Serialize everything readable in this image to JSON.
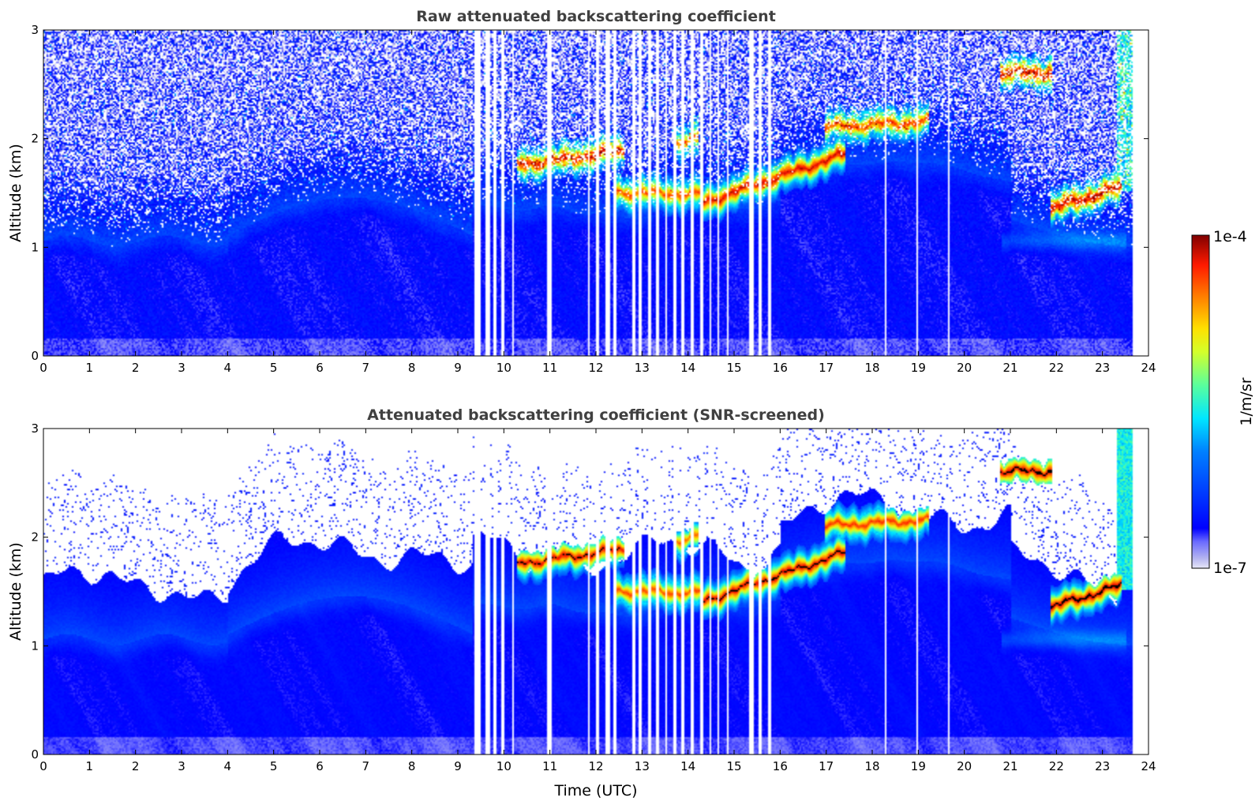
{
  "chart_data": [
    {
      "type": "heatmap",
      "title": "Raw attenuated backscattering coefficient",
      "xlabel": "",
      "ylabel": "Altitude (km)",
      "xlim": [
        0,
        24
      ],
      "ylim": [
        0,
        3
      ],
      "x_ticks": [
        "0",
        "1",
        "2",
        "3",
        "4",
        "5",
        "6",
        "7",
        "8",
        "9",
        "10",
        "11",
        "12",
        "13",
        "14",
        "15",
        "16",
        "17",
        "18",
        "19",
        "20",
        "21",
        "22",
        "23",
        "24"
      ],
      "y_ticks": [
        "0",
        "1",
        "2",
        "3"
      ],
      "screened": false
    },
    {
      "type": "heatmap",
      "title": "Attenuated backscattering coefficient (SNR-screened)",
      "xlabel": "Time (UTC)",
      "ylabel": "Altitude (km)",
      "xlim": [
        0,
        24
      ],
      "ylim": [
        0,
        3
      ],
      "x_ticks": [
        "0",
        "1",
        "2",
        "3",
        "4",
        "5",
        "6",
        "7",
        "8",
        "9",
        "10",
        "11",
        "12",
        "13",
        "14",
        "15",
        "16",
        "17",
        "18",
        "19",
        "20",
        "21",
        "22",
        "23",
        "24"
      ],
      "y_ticks": [
        "0",
        "1",
        "2",
        "3"
      ],
      "screened": true
    }
  ],
  "colorbar": {
    "label": "1/m/sr",
    "max_label": "1e-4",
    "min_label": "1e-7",
    "scale": "log",
    "colormap": "jet"
  },
  "data_end_hour": 23.65,
  "data_gaps_hours": [
    [
      9.33,
      9.47
    ],
    [
      9.58,
      9.67
    ],
    [
      9.75,
      9.83
    ],
    [
      9.92,
      10.0
    ],
    [
      10.17,
      10.2
    ],
    [
      10.92,
      11.02
    ],
    [
      11.8,
      11.85
    ],
    [
      11.98,
      12.05
    ],
    [
      12.2,
      12.3
    ],
    [
      12.37,
      12.42
    ],
    [
      12.78,
      12.85
    ],
    [
      12.92,
      12.98
    ],
    [
      13.12,
      13.18
    ],
    [
      13.3,
      13.35
    ],
    [
      13.48,
      13.53
    ],
    [
      13.67,
      13.72
    ],
    [
      13.85,
      13.9
    ],
    [
      14.05,
      14.1
    ],
    [
      14.25,
      14.3
    ],
    [
      14.45,
      14.5
    ],
    [
      14.62,
      14.67
    ],
    [
      14.82,
      14.87
    ],
    [
      15.32,
      15.4
    ],
    [
      15.52,
      15.58
    ],
    [
      15.72,
      15.78
    ],
    [
      18.27,
      18.3
    ],
    [
      18.95,
      18.98
    ],
    [
      19.62,
      19.65
    ]
  ],
  "cloud_layers": [
    {
      "t0": 10.3,
      "t1": 12.6,
      "alt_start_km": 1.75,
      "alt_end_km": 1.88,
      "level": 0.95
    },
    {
      "t0": 12.4,
      "t1": 14.3,
      "alt_start_km": 1.5,
      "alt_end_km": 1.48,
      "level": 0.88
    },
    {
      "t0": 13.7,
      "t1": 14.2,
      "alt_start_km": 1.95,
      "alt_end_km": 2.0,
      "level": 0.85
    },
    {
      "t0": 14.3,
      "t1": 17.4,
      "alt_start_km": 1.4,
      "alt_end_km": 1.85,
      "level": 0.96
    },
    {
      "t0": 17.0,
      "t1": 19.2,
      "alt_start_km": 2.1,
      "alt_end_km": 2.15,
      "level": 0.9
    },
    {
      "t0": 20.8,
      "t1": 21.9,
      "alt_start_km": 2.6,
      "alt_end_km": 2.6,
      "level": 0.97
    },
    {
      "t0": 21.9,
      "t1": 23.4,
      "alt_start_km": 1.35,
      "alt_end_km": 1.55,
      "level": 0.98
    }
  ]
}
